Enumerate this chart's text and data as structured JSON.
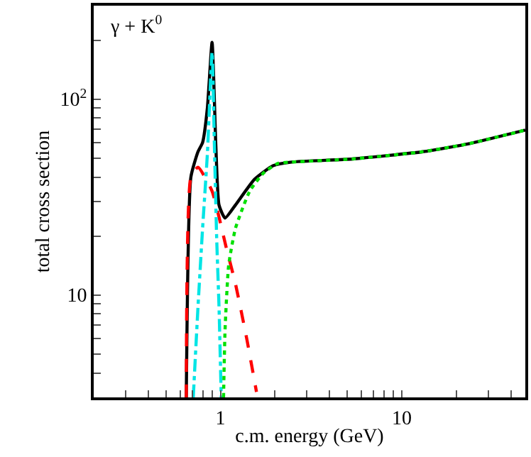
{
  "chart_data": {
    "type": "line",
    "xlabel": "c.m. energy (GeV)",
    "ylabel": "total cross section",
    "annotations": [
      "γ + K$^{0}$"
    ],
    "log": "xy",
    "marker": "none",
    "xlim": [
      0.2,
      48
    ],
    "ylim": [
      3,
      300
    ],
    "xticks": [
      {
        "value": 0.2,
        "label": null
      },
      {
        "value": 0.3,
        "label": null
      },
      {
        "value": 0.4,
        "label": null
      },
      {
        "value": 0.5,
        "label": null
      },
      {
        "value": 0.6,
        "label": null
      },
      {
        "value": 0.7,
        "label": null
      },
      {
        "value": 0.8,
        "label": null
      },
      {
        "value": 0.9,
        "label": null
      },
      1,
      {
        "value": 2,
        "label": null
      },
      {
        "value": 3,
        "label": null
      },
      {
        "value": 4,
        "label": null
      },
      {
        "value": 5,
        "label": null
      },
      {
        "value": 6,
        "label": null
      },
      {
        "value": 7,
        "label": null
      },
      {
        "value": 8,
        "label": null
      },
      {
        "value": 9,
        "label": null
      },
      10,
      {
        "value": 20,
        "label": null
      },
      {
        "value": 30,
        "label": null
      },
      {
        "value": 40,
        "label": null
      }
    ],
    "yticks": [
      {
        "value": 3,
        "label": null
      },
      {
        "value": 4,
        "label": null
      },
      {
        "value": 5,
        "label": null
      },
      {
        "value": 6,
        "label": null
      },
      {
        "value": 7,
        "label": null
      },
      {
        "value": 8,
        "label": null
      },
      {
        "value": 9,
        "label": null
      },
      10,
      {
        "value": 20,
        "label": null
      },
      {
        "value": 30,
        "label": null
      },
      {
        "value": 40,
        "label": null
      },
      {
        "value": 50,
        "label": null
      },
      {
        "value": 60,
        "label": null
      },
      {
        "value": 70,
        "label": null
      },
      {
        "value": 80,
        "label": null
      },
      {
        "value": 90,
        "label": null
      },
      {
        "value": 100,
        "label": "10$^{2}$"
      },
      {
        "value": 200,
        "label": null
      }
    ],
    "series": [
      {
        "color": "#000000",
        "line_style": "solid",
        "x": [
          0.648,
          0.687,
          0.752,
          0.797,
          0.847,
          0.899,
          0.943,
          0.982,
          1.06,
          1.21,
          1.535,
          1.95,
          2.47,
          5.35,
          13.1,
          23.6,
          48
        ],
        "values": [
          3,
          40,
          53.9,
          60,
          90,
          195,
          58,
          28.8,
          24.7,
          28.8,
          38.8,
          45.7,
          47.7,
          49.5,
          53.9,
          59.3,
          69.5
        ]
      },
      {
        "color": "#ff0000",
        "line_style": "dashed",
        "x": [
          0.648,
          0.687,
          0.752,
          0.899,
          1.074,
          1.21,
          1.4,
          1.58
        ],
        "values": [
          3,
          40,
          44.9,
          33.9,
          17.6,
          11.4,
          5.9,
          3.2
        ]
      },
      {
        "color": "#00e5e5",
        "line_style": "dashdot",
        "x": [
          0.708,
          0.752,
          0.797,
          0.847,
          0.899,
          0.926,
          0.953,
          0.982,
          1.01
        ],
        "values": [
          3,
          8.7,
          21.9,
          52.5,
          174,
          58,
          19.6,
          8.7,
          3
        ]
      },
      {
        "color": "#00e000",
        "line_style": "dotted",
        "x": [
          1.04,
          1.06,
          1.11,
          1.21,
          1.45,
          1.73,
          2.07,
          2.47,
          5.35,
          13.1,
          23.6,
          48
        ],
        "values": [
          3,
          6.6,
          14.2,
          21.9,
          33.9,
          42,
          46.9,
          47.7,
          49.5,
          53.9,
          59.3,
          69.5
        ]
      }
    ]
  }
}
